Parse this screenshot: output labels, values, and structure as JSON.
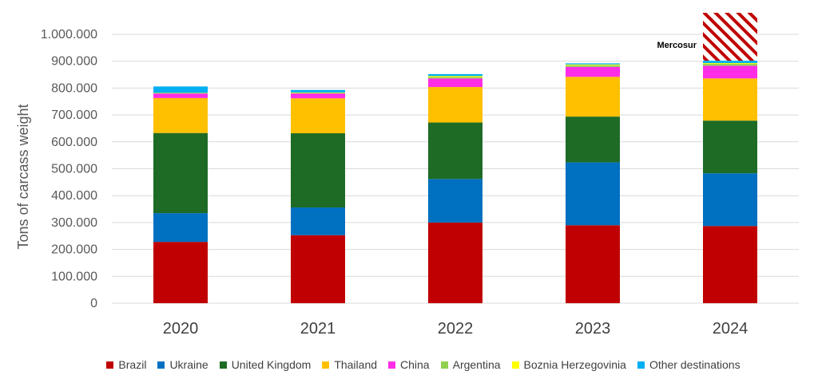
{
  "chart_data": {
    "type": "bar",
    "stacked": true,
    "title": "",
    "xlabel": "",
    "ylabel": "Tons of carcass weight",
    "ylim": [
      0,
      1000000
    ],
    "yticks": [
      0,
      100000,
      200000,
      300000,
      400000,
      500000,
      600000,
      700000,
      800000,
      900000,
      1000000
    ],
    "ytick_labels": [
      "0",
      "100.000",
      "200.000",
      "300.000",
      "400.000",
      "500.000",
      "600.000",
      "700.000",
      "800.000",
      "900.000",
      "1.000.000"
    ],
    "categories": [
      "2020",
      "2021",
      "2022",
      "2023",
      "2024"
    ],
    "grid": true,
    "legend_position": "bottom",
    "series": [
      {
        "name": "Brazil",
        "color": "#C00000",
        "values": [
          228000,
          253000,
          300000,
          290000,
          287000
        ]
      },
      {
        "name": "Ukraine",
        "color": "#0070C0",
        "values": [
          107000,
          103000,
          162000,
          234000,
          196000
        ]
      },
      {
        "name": "United Kingdom",
        "color": "#1E6B26",
        "values": [
          298000,
          276000,
          210000,
          170000,
          196000
        ]
      },
      {
        "name": "Thailand",
        "color": "#FFC000",
        "values": [
          130000,
          130000,
          132000,
          148000,
          157000
        ]
      },
      {
        "name": "China",
        "color": "#FF2DE6",
        "values": [
          17000,
          18000,
          32000,
          37000,
          47000
        ]
      },
      {
        "name": "Argentina",
        "color": "#92D050",
        "values": [
          0,
          2000,
          5000,
          6000,
          7000
        ]
      },
      {
        "name": "Boznia Herzegovinia",
        "color": "#FFFF00",
        "values": [
          2000,
          2000,
          4000,
          3000,
          3000
        ]
      },
      {
        "name": "Other destinations",
        "color": "#00B0F0",
        "values": [
          24000,
          9000,
          7000,
          4000,
          10000
        ]
      }
    ],
    "overlay": {
      "label": "Mercosur",
      "category": "2024",
      "from": 902000,
      "to": 1080000,
      "color": "#C00000",
      "pattern": "diagonal-hatch"
    }
  }
}
